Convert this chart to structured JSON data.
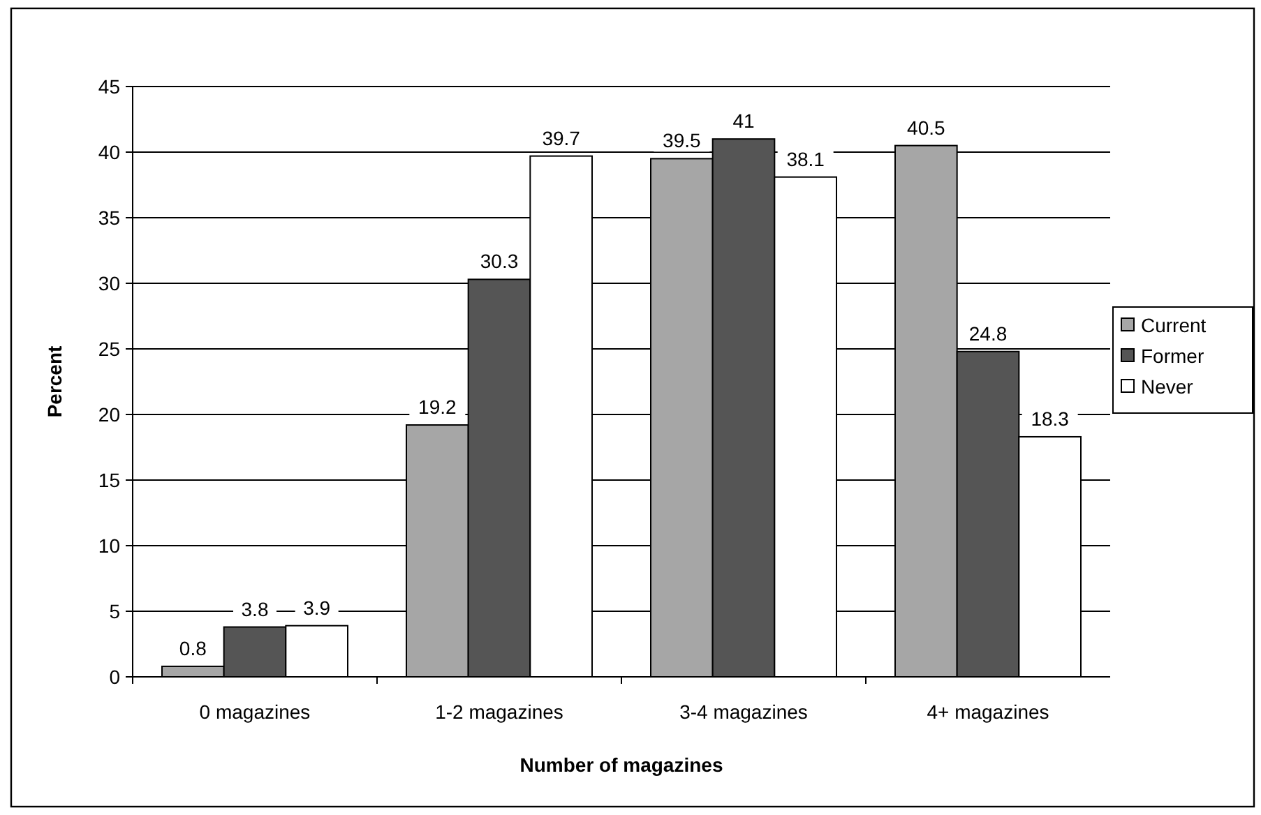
{
  "chart_data": {
    "type": "bar",
    "xlabel": "Number of magazines",
    "ylabel": "Percent",
    "categories": [
      "0 magazines",
      "1-2 magazines",
      "3-4 magazines",
      "4+ magazines"
    ],
    "series": [
      {
        "name": "Current",
        "color": "#a6a6a6",
        "values": [
          0.8,
          19.2,
          39.5,
          40.5
        ]
      },
      {
        "name": "Former",
        "color": "#555555",
        "values": [
          3.8,
          30.3,
          41,
          24.8
        ]
      },
      {
        "name": "Never",
        "color": "#ffffff",
        "values": [
          3.9,
          39.7,
          38.1,
          18.3
        ]
      }
    ],
    "ylim": [
      0,
      45
    ],
    "yticks": [
      0,
      5,
      10,
      15,
      20,
      25,
      30,
      35,
      40,
      45
    ],
    "grid": "y",
    "legend": "right",
    "data_labels": true
  }
}
